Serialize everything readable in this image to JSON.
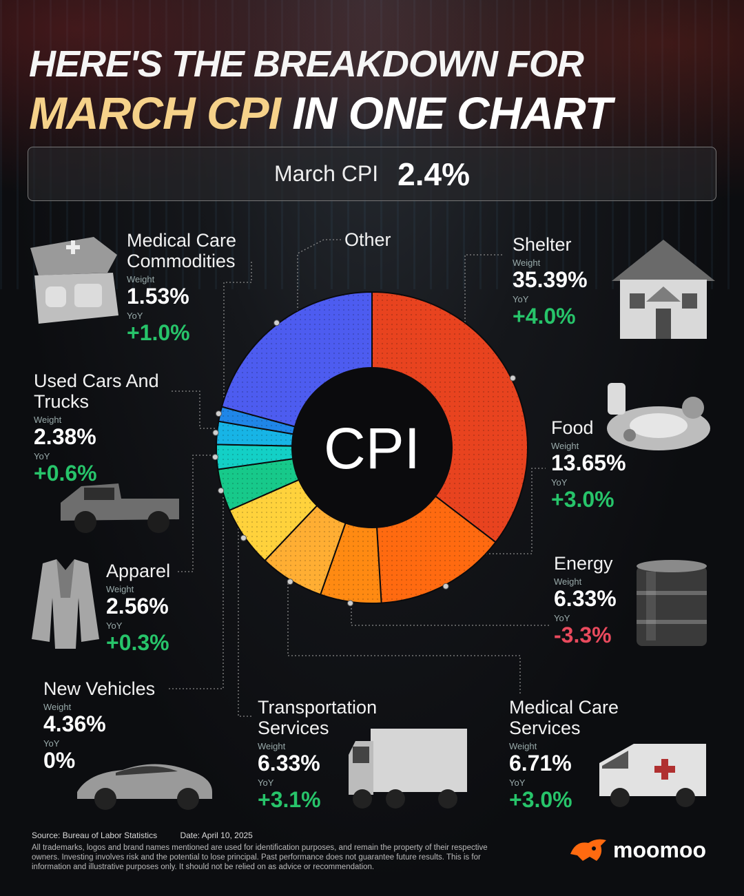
{
  "title": {
    "line1": "HERE'S THE BREAKDOWN FOR",
    "line2_highlight": "MARCH CPI",
    "line2_rest": "IN ONE CHART"
  },
  "headline": {
    "label": "March CPI",
    "value": "2.4%"
  },
  "weight_label": "Weight",
  "yoy_label": "YoY",
  "chart_data": {
    "type": "pie",
    "center_label": "CPI",
    "slices": [
      {
        "name": "Shelter",
        "weight": 35.39,
        "weight_text": "35.39%",
        "yoy": "+4.0%",
        "color": "#e8431f"
      },
      {
        "name": "Food",
        "weight": 13.65,
        "weight_text": "13.65%",
        "yoy": "+3.0%",
        "color": "#ff6a10"
      },
      {
        "name": "Energy",
        "weight": 6.33,
        "weight_text": "6.33%",
        "yoy": "-3.3%",
        "color": "#ff8a12"
      },
      {
        "name": "Medical Care Services",
        "weight": 6.71,
        "weight_text": "6.71%",
        "yoy": "+3.0%",
        "color": "#ffae33"
      },
      {
        "name": "Transportation Services",
        "weight": 6.33,
        "weight_text": "6.33%",
        "yoy": "+3.1%",
        "color": "#ffd23c"
      },
      {
        "name": "New Vehicles",
        "weight": 4.36,
        "weight_text": "4.36%",
        "yoy": "0%",
        "color": "#17c98a"
      },
      {
        "name": "Apparel",
        "weight": 2.56,
        "weight_text": "2.56%",
        "yoy": "+0.3%",
        "color": "#13d0c6"
      },
      {
        "name": "Used Cars And Trucks",
        "weight": 2.38,
        "weight_text": "2.38%",
        "yoy": "+0.6%",
        "color": "#17b4e6"
      },
      {
        "name": "Medical Care Commodities",
        "weight": 1.53,
        "weight_text": "1.53%",
        "yoy": "+1.0%",
        "color": "#1f86e8"
      },
      {
        "name": "Other",
        "weight": 20.76,
        "color": "#4d5cf0"
      }
    ]
  },
  "labels": {
    "shelter": {
      "name": "Shelter",
      "weight": "35.39%",
      "yoy": "+4.0%"
    },
    "food": {
      "name": "Food",
      "weight": "13.65%",
      "yoy": "+3.0%"
    },
    "energy": {
      "name": "Energy",
      "weight": "6.33%",
      "yoy": "-3.3%"
    },
    "med_services": {
      "name1": "Medical Care",
      "name2": "Services",
      "weight": "6.71%",
      "yoy": "+3.0%"
    },
    "transport": {
      "name1": "Transportation",
      "name2": "Services",
      "weight": "6.33%",
      "yoy": "+3.1%"
    },
    "new_vehicles": {
      "name": "New Vehicles",
      "weight": "4.36%",
      "yoy": "0%"
    },
    "apparel": {
      "name": "Apparel",
      "weight": "2.56%",
      "yoy": "+0.3%"
    },
    "used_cars": {
      "name1": "Used Cars And",
      "name2": "Trucks",
      "weight": "2.38%",
      "yoy": "+0.6%"
    },
    "med_comm": {
      "name1": "Medical Care",
      "name2": "Commodities",
      "weight": "1.53%",
      "yoy": "+1.0%"
    },
    "other": {
      "name": "Other"
    }
  },
  "footer": {
    "source": "Source: Bureau of Labor Statistics",
    "date": "Date: April 10, 2025",
    "disclaimer": "All trademarks, logos and brand names mentioned are used for identification purposes, and remain the property of their respective owners. Investing involves risk and the potential to lose principal. Past performance does not guarantee future results. This is for information and illustrative purposes only. It should not be relied on as advice or recommendation."
  },
  "brand": {
    "name": "moomoo",
    "color": "#ff6a10"
  }
}
